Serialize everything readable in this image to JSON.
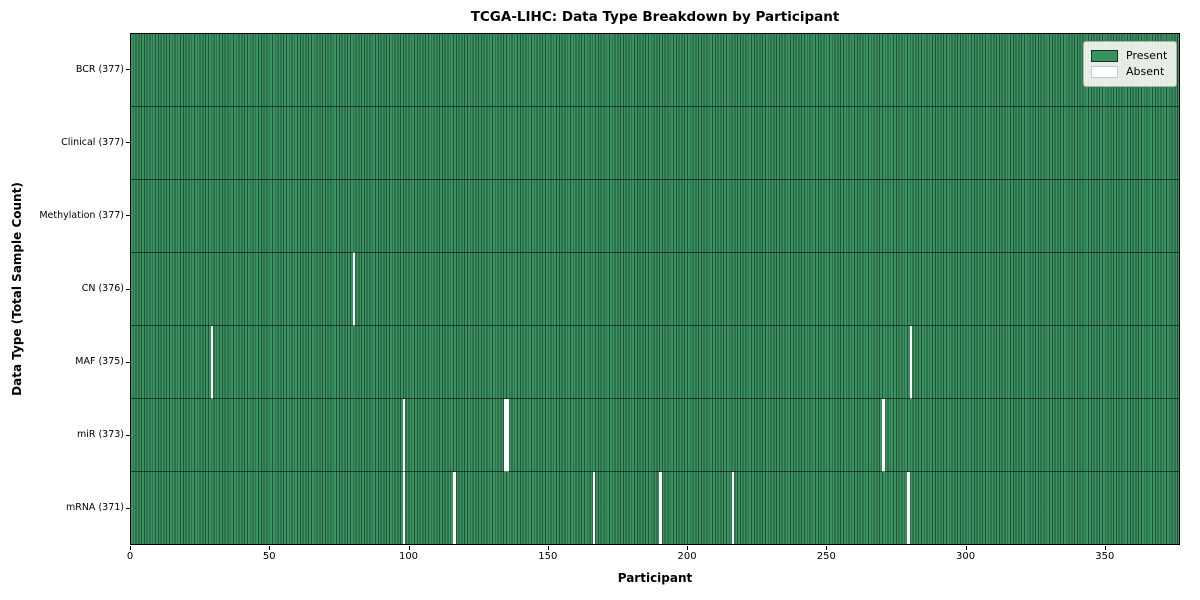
{
  "chart_data": {
    "type": "heatmap",
    "title": "TCGA-LIHC: Data Type Breakdown by Participant",
    "xlabel": "Participant",
    "ylabel": "Data Type (Total Sample Count)",
    "x_ticks": [
      0,
      50,
      100,
      150,
      200,
      250,
      300,
      350
    ],
    "x_range": [
      0,
      377
    ],
    "n_participants": 377,
    "grid": "cell-edges",
    "legend_position": "upper-right",
    "categories": [
      "BCR (377)",
      "Clinical (377)",
      "Methylation (377)",
      "CN (376)",
      "MAF (375)",
      "miR (373)",
      "mRNA (371)"
    ],
    "rows": [
      {
        "label": "BCR (377)",
        "data_type": "BCR",
        "present_count": 377,
        "absent_participants": []
      },
      {
        "label": "Clinical (377)",
        "data_type": "Clinical",
        "present_count": 377,
        "absent_participants": []
      },
      {
        "label": "Methylation (377)",
        "data_type": "Methylation",
        "present_count": 377,
        "absent_participants": []
      },
      {
        "label": "CN (376)",
        "data_type": "CN",
        "present_count": 376,
        "absent_participants": [
          80
        ]
      },
      {
        "label": "MAF (375)",
        "data_type": "MAF",
        "present_count": 375,
        "absent_participants": [
          29,
          280
        ]
      },
      {
        "label": "miR (373)",
        "data_type": "miR",
        "present_count": 373,
        "absent_participants": [
          98,
          134,
          135,
          270
        ]
      },
      {
        "label": "mRNA (371)",
        "data_type": "mRNA",
        "present_count": 371,
        "absent_participants": [
          98,
          116,
          166,
          190,
          216,
          279
        ]
      }
    ],
    "legend": [
      {
        "label": "Present",
        "color": "#3a9161"
      },
      {
        "label": "Absent",
        "color": "#ffffff"
      }
    ],
    "colors": {
      "present": "#3a9161",
      "absent": "#ffffff",
      "cell_edge": "#1d4a31",
      "background": "#ffffff",
      "axis": "#000000"
    }
  }
}
